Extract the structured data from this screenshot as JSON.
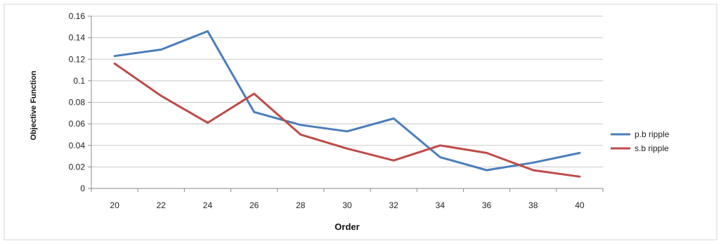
{
  "chart_data": {
    "type": "line",
    "title": "",
    "xlabel": "Order",
    "ylabel": "Objective Function",
    "x": [
      20,
      22,
      24,
      26,
      28,
      30,
      32,
      34,
      36,
      38,
      40
    ],
    "x_tick_labels": [
      "20",
      "22",
      "24",
      "26",
      "28",
      "30",
      "32",
      "34",
      "36",
      "38",
      "40"
    ],
    "ylim": [
      0,
      0.16
    ],
    "y_ticks": [
      0,
      0.02,
      0.04,
      0.06,
      0.08,
      0.1,
      0.12,
      0.14,
      0.16
    ],
    "y_tick_labels": [
      "0",
      "0.02",
      "0.04",
      "0.06",
      "0.08",
      "0.1",
      "0.12",
      "0.14",
      "0.16"
    ],
    "grid": true,
    "legend_position": "right",
    "series": [
      {
        "name": "p.b ripple",
        "color": "#4a7ebb",
        "values": [
          0.123,
          0.129,
          0.146,
          0.071,
          0.059,
          0.053,
          0.065,
          0.029,
          0.017,
          0.024,
          0.033
        ]
      },
      {
        "name": "s.b ripple",
        "color": "#be4b48",
        "values": [
          0.116,
          0.086,
          0.061,
          0.088,
          0.05,
          0.037,
          0.026,
          0.04,
          0.033,
          0.017,
          0.011
        ]
      }
    ]
  }
}
